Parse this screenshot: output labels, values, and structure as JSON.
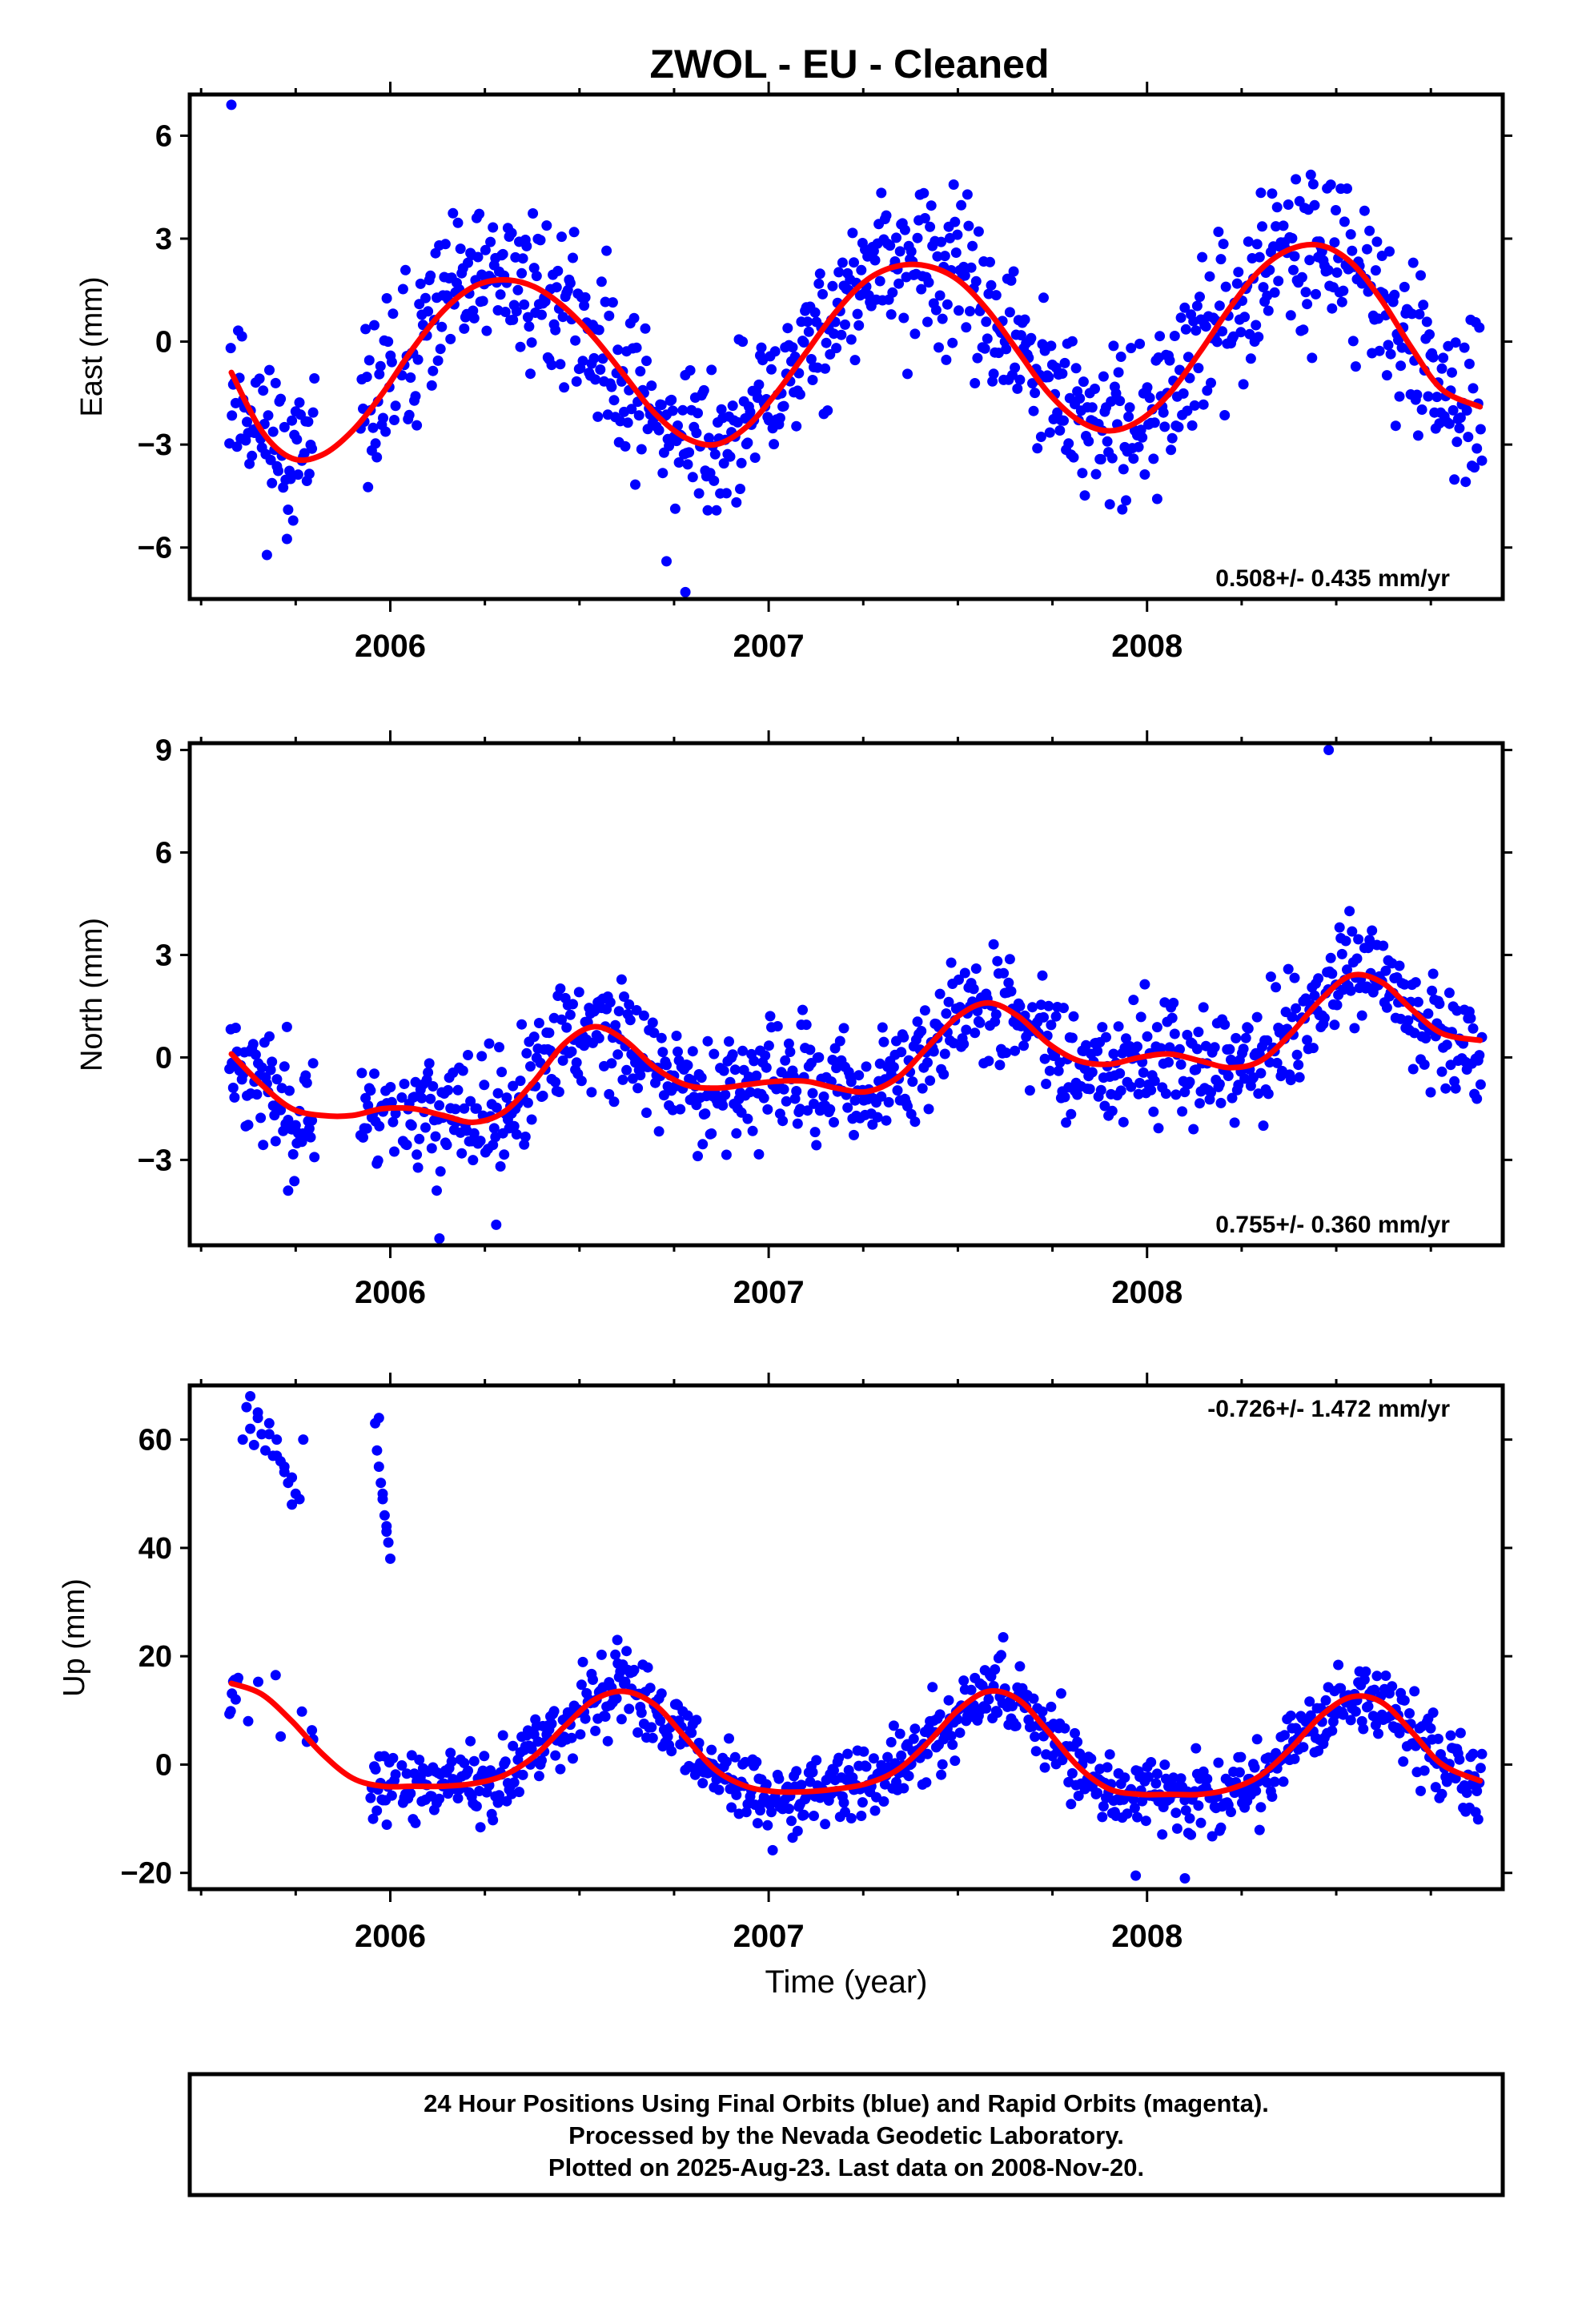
{
  "chart_title": "ZWOL  - EU - Cleaned",
  "footer": {
    "line1": "24 Hour Positions Using Final Orbits (blue) and Rapid Orbits (magenta).",
    "line2": "Processed by the Nevada Geodetic Laboratory.",
    "line3": "Plotted on 2025-Aug-23. Last data on 2008-Nov-20."
  },
  "colors": {
    "final_orbits": "#0000ff",
    "fit": "#ff0000",
    "frame": "#000000"
  },
  "chart_data": [
    {
      "type": "scatter",
      "ylabel": "East (mm)",
      "xlabel": "",
      "x_ticks": [
        "2006",
        "2007",
        "2008"
      ],
      "xlim": [
        2005.47,
        2008.94
      ],
      "ylim": [
        -7.5,
        7.2
      ],
      "y_ticks": [
        -6,
        -3,
        0,
        3,
        6
      ],
      "y_tick_labels": [
        "−6",
        "−3",
        "0",
        "3",
        "6"
      ],
      "rate_label": "0.508+/- 0.435 mm/yr",
      "rate_position": "bottom-right",
      "series": [
        {
          "role": "daily positions",
          "color": "#0000ff",
          "model": {
            "rate": 0.508,
            "offset": 0.0,
            "annual_sin": 2.28,
            "annual_cos": -0.86,
            "semi_sin": 0.1,
            "semi_cos": -0.85,
            "noise": 1.15,
            "seed": 11
          },
          "outliers": [
            [
              2005.58,
              6.9
            ],
            [
              2006.78,
              -7.3
            ],
            [
              2006.73,
              -6.4
            ]
          ]
        },
        {
          "role": "fit",
          "color": "#ff0000",
          "x": [
            2005.58,
            2005.66,
            2005.74,
            2005.82,
            2005.9,
            2005.98,
            2006.06,
            2006.14,
            2006.22,
            2006.3,
            2006.38,
            2006.46,
            2006.54,
            2006.62,
            2006.7,
            2006.78,
            2006.86,
            2006.94,
            2007.02,
            2007.1,
            2007.18,
            2007.26,
            2007.34,
            2007.42,
            2007.5,
            2007.58,
            2007.66,
            2007.74,
            2007.82,
            2007.9,
            2007.98,
            2008.06,
            2008.14,
            2008.22,
            2008.3,
            2008.38,
            2008.46,
            2008.54,
            2008.62,
            2008.7,
            2008.78,
            2008.88
          ],
          "y": [
            -0.9,
            -2.6,
            -3.4,
            -3.3,
            -2.6,
            -1.5,
            -0.2,
            0.9,
            1.6,
            1.8,
            1.6,
            1.0,
            0.1,
            -1.0,
            -2.1,
            -2.8,
            -3.0,
            -2.5,
            -1.5,
            -0.3,
            0.9,
            1.8,
            2.2,
            2.2,
            1.8,
            0.9,
            -0.3,
            -1.5,
            -2.3,
            -2.6,
            -2.3,
            -1.5,
            -0.3,
            1.0,
            2.1,
            2.7,
            2.8,
            2.3,
            1.2,
            -0.2,
            -1.4,
            -1.9
          ]
        }
      ]
    },
    {
      "type": "scatter",
      "ylabel": "North (mm)",
      "xlabel": "",
      "x_ticks": [
        "2006",
        "2007",
        "2008"
      ],
      "xlim": [
        2005.47,
        2008.94
      ],
      "ylim": [
        -5.5,
        9.2
      ],
      "y_ticks": [
        -3,
        0,
        3,
        6,
        9
      ],
      "y_tick_labels": [
        "−3",
        "0",
        "3",
        "6",
        "9"
      ],
      "rate_label": "0.755+/- 0.360 mm/yr",
      "rate_position": "bottom-right",
      "series": [
        {
          "role": "daily positions",
          "color": "#0000ff",
          "model": {
            "rate": 0.755,
            "offset": 0.0,
            "noise": 0.85,
            "seed": 23
          },
          "outliers": [
            [
              2008.48,
              9.0
            ],
            [
              2006.13,
              -5.3
            ],
            [
              2006.28,
              -4.9
            ],
            [
              2005.73,
              -3.9
            ]
          ]
        },
        {
          "role": "fit",
          "color": "#ff0000",
          "x": [
            2005.58,
            2005.66,
            2005.74,
            2005.82,
            2005.9,
            2005.98,
            2006.06,
            2006.14,
            2006.22,
            2006.3,
            2006.38,
            2006.46,
            2006.54,
            2006.62,
            2006.7,
            2006.78,
            2006.86,
            2006.94,
            2007.02,
            2007.1,
            2007.18,
            2007.26,
            2007.34,
            2007.42,
            2007.5,
            2007.58,
            2007.66,
            2007.74,
            2007.82,
            2007.9,
            2007.98,
            2008.06,
            2008.14,
            2008.22,
            2008.3,
            2008.38,
            2008.46,
            2008.54,
            2008.62,
            2008.7,
            2008.78,
            2008.88
          ],
          "y": [
            0.1,
            -0.8,
            -1.5,
            -1.7,
            -1.7,
            -1.5,
            -1.5,
            -1.7,
            -1.9,
            -1.6,
            -0.7,
            0.4,
            0.9,
            0.5,
            -0.3,
            -0.8,
            -0.9,
            -0.8,
            -0.7,
            -0.7,
            -0.9,
            -1.0,
            -0.6,
            0.3,
            1.2,
            1.6,
            1.2,
            0.4,
            -0.1,
            -0.2,
            0.0,
            0.1,
            -0.1,
            -0.3,
            -0.1,
            0.7,
            1.7,
            2.4,
            2.2,
            1.4,
            0.7,
            0.5
          ]
        }
      ]
    },
    {
      "type": "scatter",
      "ylabel": "Up (mm)",
      "xlabel": "Time (year)",
      "x_ticks": [
        "2006",
        "2007",
        "2008"
      ],
      "xlim": [
        2005.47,
        2008.94
      ],
      "ylim": [
        -23,
        70
      ],
      "y_ticks": [
        -20,
        0,
        20,
        40,
        60
      ],
      "y_tick_labels": [
        "−20",
        "0",
        "20",
        "40",
        "60"
      ],
      "rate_label": "-0.726+/- 1.472 mm/yr",
      "rate_position": "top-right",
      "series": [
        {
          "role": "daily positions",
          "color": "#0000ff",
          "model": {
            "rate": -0.726,
            "offset": 0.0,
            "noise": 3.6,
            "seed": 37
          },
          "outliers": [
            [
              2006.6,
              23.0
            ],
            [
              2007.62,
              23.5
            ],
            [
              2007.97,
              -20.5
            ],
            [
              2008.1,
              -21.0
            ]
          ]
        },
        {
          "role": "daily positions (offset cluster)",
          "color": "#0000ff",
          "x": [
            2005.61,
            2005.62,
            2005.63,
            2005.64,
            2005.65,
            2005.66,
            2005.67,
            2005.68,
            2005.69,
            2005.7,
            2005.71,
            2005.72,
            2005.73,
            2005.74,
            2005.75,
            2005.76,
            2005.63,
            2005.65,
            2005.68,
            2005.7,
            2005.72,
            2005.74,
            2005.77,
            2005.96,
            2005.965,
            2005.97,
            2005.975,
            2005.98,
            2005.985,
            2005.99,
            2005.995,
            2006.0,
            2005.97,
            2005.98,
            2005.99
          ],
          "y": [
            60,
            66,
            62,
            59,
            64,
            61,
            58,
            63,
            57,
            60,
            56,
            55,
            52,
            53,
            50,
            49,
            68,
            65,
            61,
            57,
            54,
            48,
            60,
            63,
            58,
            55,
            52,
            50,
            46,
            44,
            41,
            38,
            64,
            49,
            43
          ]
        },
        {
          "role": "fit",
          "color": "#ff0000",
          "x": [
            2005.58,
            2005.66,
            2005.74,
            2005.82,
            2005.9,
            2005.98,
            2006.06,
            2006.14,
            2006.22,
            2006.3,
            2006.38,
            2006.46,
            2006.54,
            2006.62,
            2006.7,
            2006.78,
            2006.86,
            2006.94,
            2007.02,
            2007.1,
            2007.18,
            2007.26,
            2007.34,
            2007.42,
            2007.5,
            2007.58,
            2007.66,
            2007.74,
            2007.82,
            2007.9,
            2007.98,
            2008.06,
            2008.14,
            2008.22,
            2008.3,
            2008.38,
            2008.46,
            2008.54,
            2008.62,
            2008.7,
            2008.78,
            2008.88
          ],
          "y": [
            15.0,
            13.0,
            8.0,
            2.0,
            -2.5,
            -4.0,
            -4.0,
            -4.0,
            -3.5,
            -2.0,
            1.5,
            7.0,
            12.0,
            13.5,
            11.0,
            5.0,
            -1.0,
            -4.0,
            -5.0,
            -5.0,
            -4.5,
            -3.5,
            -1.0,
            4.0,
            10.0,
            13.5,
            12.0,
            6.0,
            -0.5,
            -4.5,
            -5.5,
            -5.5,
            -5.5,
            -4.5,
            -2.0,
            3.0,
            9.0,
            12.5,
            11.5,
            6.0,
            0.0,
            -3.0
          ]
        }
      ]
    }
  ]
}
